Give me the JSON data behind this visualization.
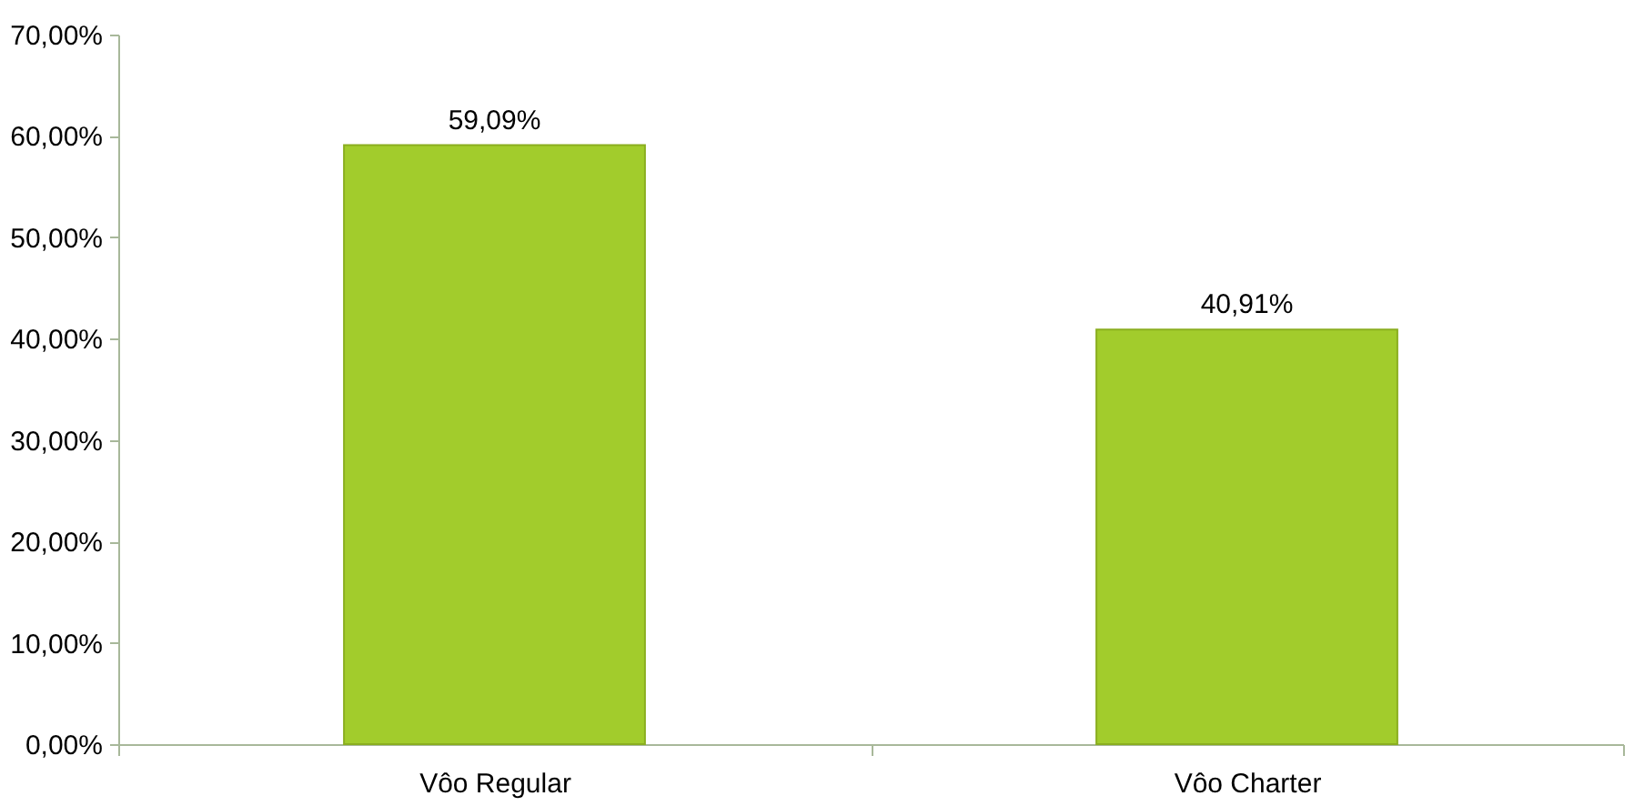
{
  "chart_data": {
    "type": "bar",
    "categories": [
      "Vôo Regular",
      "Vôo Charter"
    ],
    "values": [
      59.09,
      40.91
    ],
    "color": "#a2cc2c",
    "value_labels": [
      "59,09%",
      "40,91%"
    ],
    "ylim": [
      0,
      70
    ],
    "yticks": [
      {
        "value": 0,
        "label": "0,00%"
      },
      {
        "value": 10,
        "label": "10,00%"
      },
      {
        "value": 20,
        "label": "20,00%"
      },
      {
        "value": 30,
        "label": "30,00%"
      },
      {
        "value": 40,
        "label": "40,00%"
      },
      {
        "value": 50,
        "label": "50,00%"
      },
      {
        "value": 60,
        "label": "60,00%"
      },
      {
        "value": 70,
        "label": "70,00%"
      }
    ],
    "grid": false
  }
}
